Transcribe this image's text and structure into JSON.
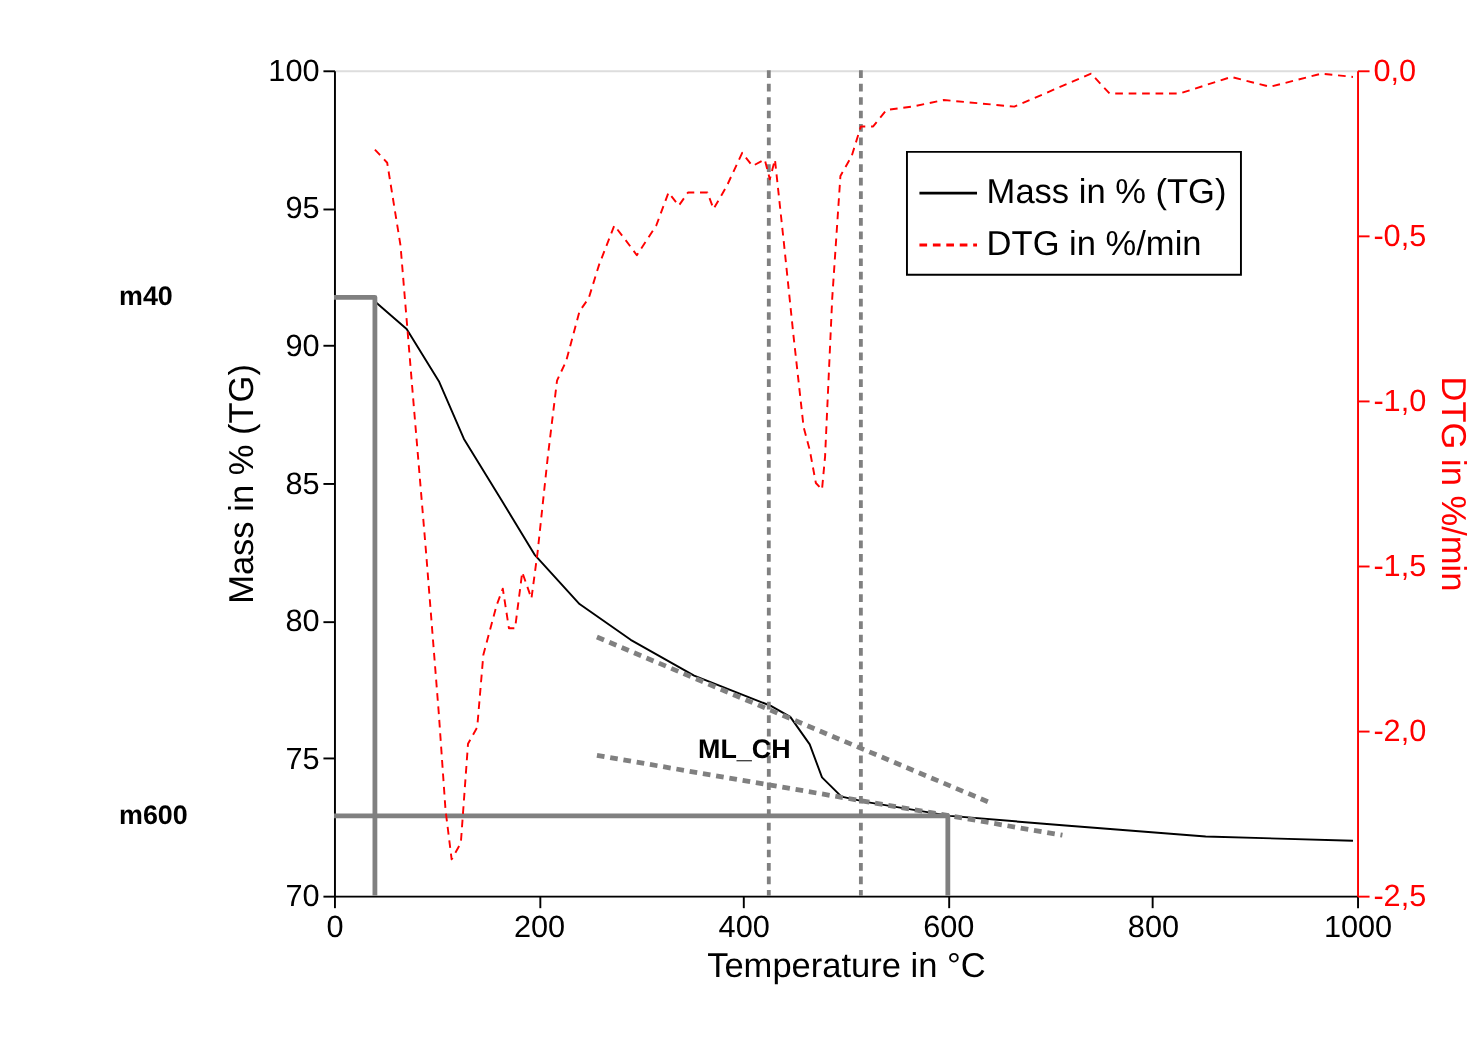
{
  "chart_data": {
    "type": "line",
    "xlabel": "Temperature in °C",
    "ylabel": "Mass in % (TG)",
    "y2label": "DTG in %/min",
    "xlim": [
      0,
      1000
    ],
    "xticks": [
      0,
      200,
      400,
      600,
      800,
      1000
    ],
    "ylim": [
      70,
      100
    ],
    "yticks": [
      70,
      75,
      80,
      85,
      90,
      95,
      100
    ],
    "y2lim": [
      -2.5,
      0
    ],
    "y2ticks": [
      {
        "value": -2.5,
        "label": "-2,5"
      },
      {
        "value": -2.0,
        "label": "-2,0"
      },
      {
        "value": -1.5,
        "label": "-1,5"
      },
      {
        "value": -1.0,
        "label": "-1,0"
      },
      {
        "value": -0.5,
        "label": "-0,5"
      },
      {
        "value": 0,
        "label": "0,0"
      }
    ],
    "grid": false,
    "legend": "top right",
    "marker": "none",
    "series": [
      {
        "name": "Mass in % (TG)",
        "color": "#000000",
        "line_style": "solid",
        "x": [
          40,
          71,
          102.5,
          127,
          165,
          196,
          240,
          290,
          352,
          427,
          446,
          465,
          477,
          496,
          521,
          602,
          715,
          852,
          996
        ],
        "values": [
          91.6,
          90.6,
          88.7,
          86.6,
          84.3,
          82.4,
          80.6,
          79.3,
          78.0,
          76.9,
          76.5,
          75.5,
          74.3,
          73.6,
          73.4,
          72.9,
          72.55,
          72.15,
          72.0
        ]
      },
      {
        "name": "DTG in %/min",
        "color": "#ff0000",
        "line_style": "dashed",
        "axis": "y2",
        "x": [
          40,
          52,
          65,
          77,
          90,
          102.5,
          109,
          115,
          124,
          131,
          140,
          146,
          159,
          165,
          171,
          177,
          184,
          193,
          199,
          209,
          218,
          227,
          240,
          249,
          259,
          274,
          284,
          296,
          315,
          327,
          337,
          346,
          365,
          371,
          384,
          399,
          409,
          421,
          426,
          431,
          440,
          449,
          459,
          465,
          471,
          477,
          480,
          487,
          495,
          506,
          515,
          527,
          540,
          565,
          596,
          665,
          740,
          758,
          827,
          877,
          915,
          965,
          996
        ],
        "values": [
          -0.24,
          -0.28,
          -0.53,
          -0.98,
          -1.46,
          -1.95,
          -2.24,
          -2.39,
          -2.34,
          -2.04,
          -1.99,
          -1.77,
          -1.62,
          -1.57,
          -1.69,
          -1.69,
          -1.52,
          -1.6,
          -1.46,
          -1.17,
          -0.94,
          -0.88,
          -0.73,
          -0.69,
          -0.59,
          -0.47,
          -0.51,
          -0.56,
          -0.47,
          -0.37,
          -0.41,
          -0.37,
          -0.37,
          -0.42,
          -0.35,
          -0.25,
          -0.29,
          -0.27,
          -0.33,
          -0.27,
          -0.53,
          -0.8,
          -1.08,
          -1.15,
          -1.25,
          -1.27,
          -1.17,
          -0.69,
          -0.32,
          -0.26,
          -0.17,
          -0.17,
          -0.12,
          -0.11,
          -0.09,
          -0.11,
          -0.01,
          -0.07,
          -0.07,
          -0.02,
          -0.05,
          -0.01,
          -0.02
        ]
      },
      {
        "color": "#808080",
        "line_style": "solid",
        "x": [
          0,
          40,
          40
        ],
        "values": [
          91.75,
          91.75,
          70
        ]
      },
      {
        "color": "#808080",
        "line_style": "solid",
        "x": [
          0,
          600,
          600
        ],
        "values": [
          72.9,
          72.9,
          70
        ]
      },
      {
        "color": "#808080",
        "line_style": "dashed",
        "x": [
          257,
          640
        ],
        "values": [
          79.4,
          73.4
        ]
      },
      {
        "color": "#808080",
        "line_style": "dashed",
        "x": [
          257,
          712
        ],
        "values": [
          75.1,
          72.2
        ]
      }
    ],
    "ref_lines": [
      {
        "axis": "x",
        "value": 425,
        "color": "#808080",
        "line_style": "dashed"
      },
      {
        "axis": "x",
        "value": 515,
        "color": "#808080",
        "line_style": "dashed"
      }
    ],
    "annotations": [
      "m40",
      "m600",
      {
        "text": "ML_CH",
        "x": 465,
        "y": 75.3
      }
    ]
  }
}
